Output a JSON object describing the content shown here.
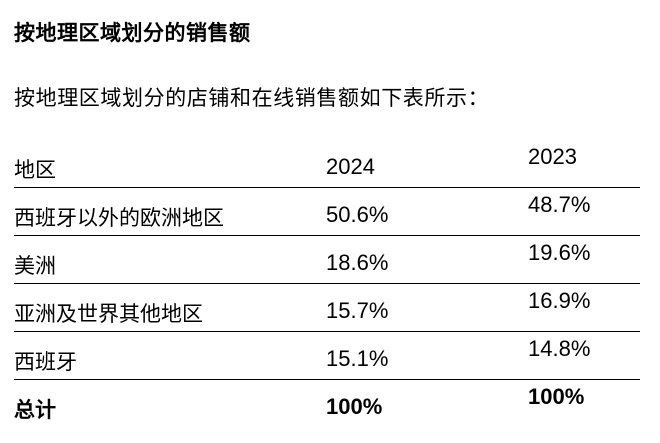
{
  "heading": "按地理区域划分的销售额",
  "intro": "按地理区域划分的店铺和在线销售额如下表所示：",
  "table": {
    "columns": [
      "地区",
      "2024",
      "2023"
    ],
    "rows": [
      {
        "region": "西班牙以外的欧洲地区",
        "y2024": "50.6%",
        "y2023": "48.7%"
      },
      {
        "region": "美洲",
        "y2024": "18.6%",
        "y2023": "19.6%"
      },
      {
        "region": "亚洲及世界其他地区",
        "y2024": "15.7%",
        "y2023": "16.9%"
      },
      {
        "region": "西班牙",
        "y2024": "15.1%",
        "y2023": "14.8%"
      }
    ],
    "total": {
      "region": "总计",
      "y2024": "100%",
      "y2023": "100%"
    }
  }
}
